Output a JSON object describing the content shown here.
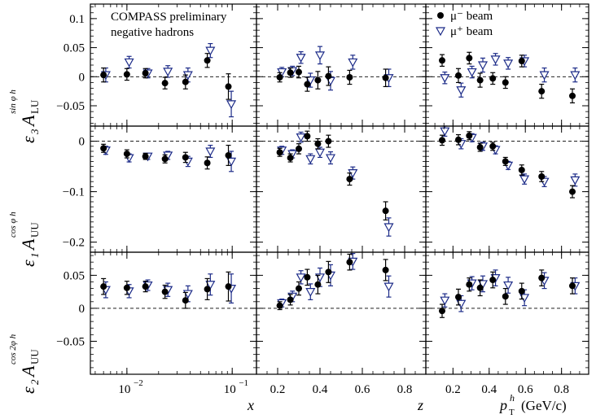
{
  "chart_data": {
    "type": "scatter",
    "collaboration_text": [
      "COMPASS preliminary",
      "negative hadrons"
    ],
    "series": [
      {
        "name": "μ⁻ beam",
        "marker": "filled-circle",
        "color": "#000000"
      },
      {
        "name": "μ⁺ beam",
        "marker": "open-triangle-down",
        "color": "#1c2b88"
      }
    ],
    "columns": [
      {
        "xlabel": "x",
        "xscale": "log",
        "xlim": [
          0.0045,
          0.17
        ],
        "xticks": [
          {
            "v": 0.01,
            "label": "10",
            "exp": "−2"
          },
          {
            "v": 0.1,
            "label": "10",
            "exp": "−1"
          }
        ]
      },
      {
        "xlabel": "z",
        "xscale": "linear",
        "xlim": [
          0.1,
          0.9
        ],
        "xticks": [
          {
            "v": 0.2,
            "label": "0.2"
          },
          {
            "v": 0.4,
            "label": "0.4"
          },
          {
            "v": 0.6,
            "label": "0.6"
          },
          {
            "v": 0.8,
            "label": "0.8"
          }
        ]
      },
      {
        "xlabel": "p",
        "xlabel_sub": "T",
        "xlabel_sup": "h",
        "xlabel_unit": "(GeV/c)",
        "xscale": "linear",
        "xlim": [
          0.05,
          0.95
        ],
        "xticks": [
          {
            "v": 0.2,
            "label": "0.2"
          },
          {
            "v": 0.4,
            "label": "0.4"
          },
          {
            "v": 0.6,
            "label": "0.6"
          },
          {
            "v": 0.8,
            "label": "0.8"
          }
        ]
      }
    ],
    "rows": [
      {
        "ylabel": "ε3 A_LU^{sin φh}",
        "ylim": [
          -0.085,
          0.125
        ],
        "yticks": [
          {
            "v": 0.1,
            "label": "0.1"
          },
          {
            "v": 0.05,
            "label": "0.05"
          },
          {
            "v": 0,
            "label": "0"
          },
          {
            "v": -0.05,
            "label": "−0.05"
          }
        ]
      },
      {
        "ylabel": "ε1 A_UU^{cos φh}",
        "ylim": [
          -0.22,
          0.03
        ],
        "yticks": [
          {
            "v": 0,
            "label": "0"
          },
          {
            "v": -0.1,
            "label": "−0.1"
          },
          {
            "v": -0.2,
            "label": "−0.2"
          }
        ]
      },
      {
        "ylabel": "ε2 A_UU^{cos 2φh}",
        "ylim": [
          -0.1,
          0.085
        ],
        "yticks": [
          {
            "v": 0.05,
            "label": "0.05"
          },
          {
            "v": 0,
            "label": "0"
          },
          {
            "v": -0.05,
            "label": "−0.05"
          }
        ]
      }
    ],
    "panels": [
      [
        {
          "mu_minus": [
            [
              0.006,
              0.003,
              0.012
            ],
            [
              0.01,
              0.004,
              0.01
            ],
            [
              0.015,
              0.006,
              0.008
            ],
            [
              0.023,
              -0.011,
              0.01
            ],
            [
              0.036,
              -0.009,
              0.012
            ],
            [
              0.058,
              0.028,
              0.012
            ],
            [
              0.092,
              -0.017,
              0.022
            ]
          ],
          "mu_plus": [
            [
              0.0063,
              0.003,
              0.012
            ],
            [
              0.0105,
              0.025,
              0.01
            ],
            [
              0.0158,
              0.006,
              0.008
            ],
            [
              0.0245,
              0.009,
              0.01
            ],
            [
              0.038,
              0.003,
              0.012
            ],
            [
              0.062,
              0.045,
              0.012
            ],
            [
              0.098,
              -0.047,
              0.022
            ]
          ]
        },
        {
          "mu_minus": [
            [
              0.21,
              -0.001,
              0.008
            ],
            [
              0.26,
              0.007,
              0.008
            ],
            [
              0.3,
              0.008,
              0.01
            ],
            [
              0.34,
              -0.013,
              0.012
            ],
            [
              0.39,
              -0.006,
              0.015
            ],
            [
              0.44,
              0.001,
              0.016
            ],
            [
              0.54,
              -0.001,
              0.012
            ],
            [
              0.71,
              -0.002,
              0.015
            ]
          ],
          "mu_plus": [
            [
              0.22,
              0.008,
              0.008
            ],
            [
              0.27,
              0.01,
              0.008
            ],
            [
              0.31,
              0.033,
              0.01
            ],
            [
              0.355,
              -0.006,
              0.012
            ],
            [
              0.4,
              0.037,
              0.015
            ],
            [
              0.45,
              -0.007,
              0.016
            ],
            [
              0.555,
              0.025,
              0.012
            ],
            [
              0.725,
              -0.002,
              0.015
            ]
          ]
        },
        {
          "mu_minus": [
            [
              0.14,
              0.028,
              0.01
            ],
            [
              0.23,
              0.002,
              0.012
            ],
            [
              0.29,
              0.032,
              0.01
            ],
            [
              0.35,
              -0.006,
              0.012
            ],
            [
              0.42,
              -0.003,
              0.01
            ],
            [
              0.49,
              -0.01,
              0.01
            ],
            [
              0.58,
              0.027,
              0.01
            ],
            [
              0.69,
              -0.025,
              0.012
            ],
            [
              0.86,
              -0.033,
              0.012
            ]
          ],
          "mu_plus": [
            [
              0.155,
              -0.002,
              0.01
            ],
            [
              0.245,
              -0.023,
              0.012
            ],
            [
              0.305,
              0.008,
              0.01
            ],
            [
              0.365,
              0.02,
              0.012
            ],
            [
              0.435,
              0.03,
              0.01
            ],
            [
              0.505,
              0.023,
              0.01
            ],
            [
              0.595,
              0.027,
              0.01
            ],
            [
              0.705,
              0.003,
              0.012
            ],
            [
              0.875,
              0.003,
              0.012
            ]
          ]
        }
      ],
      [
        {
          "mu_minus": [
            [
              0.006,
              -0.014,
              0.008
            ],
            [
              0.01,
              -0.025,
              0.008
            ],
            [
              0.015,
              -0.03,
              0.006
            ],
            [
              0.023,
              -0.035,
              0.008
            ],
            [
              0.036,
              -0.032,
              0.01
            ],
            [
              0.058,
              -0.043,
              0.012
            ],
            [
              0.092,
              -0.028,
              0.02
            ]
          ],
          "mu_plus": [
            [
              0.0063,
              -0.018,
              0.008
            ],
            [
              0.0105,
              -0.033,
              0.008
            ],
            [
              0.0158,
              -0.03,
              0.006
            ],
            [
              0.0245,
              -0.028,
              0.008
            ],
            [
              0.038,
              -0.04,
              0.01
            ],
            [
              0.062,
              -0.02,
              0.012
            ],
            [
              0.098,
              -0.04,
              0.02
            ]
          ]
        },
        {
          "mu_minus": [
            [
              0.21,
              -0.022,
              0.008
            ],
            [
              0.26,
              -0.033,
              0.008
            ],
            [
              0.3,
              -0.015,
              0.01
            ],
            [
              0.34,
              0.01,
              0.01
            ],
            [
              0.39,
              -0.005,
              0.01
            ],
            [
              0.44,
              0.0,
              0.012
            ],
            [
              0.54,
              -0.075,
              0.012
            ],
            [
              0.71,
              -0.138,
              0.018
            ]
          ],
          "mu_plus": [
            [
              0.22,
              -0.018,
              0.008
            ],
            [
              0.27,
              -0.025,
              0.008
            ],
            [
              0.31,
              0.008,
              0.01
            ],
            [
              0.355,
              -0.035,
              0.01
            ],
            [
              0.4,
              -0.022,
              0.01
            ],
            [
              0.45,
              -0.033,
              0.012
            ],
            [
              0.555,
              -0.063,
              0.012
            ],
            [
              0.725,
              -0.17,
              0.018
            ]
          ]
        },
        {
          "mu_minus": [
            [
              0.14,
              0.002,
              0.01
            ],
            [
              0.23,
              0.003,
              0.01
            ],
            [
              0.29,
              0.011,
              0.008
            ],
            [
              0.35,
              -0.012,
              0.008
            ],
            [
              0.42,
              -0.01,
              0.008
            ],
            [
              0.49,
              -0.04,
              0.008
            ],
            [
              0.58,
              -0.057,
              0.01
            ],
            [
              0.69,
              -0.07,
              0.01
            ],
            [
              0.86,
              -0.1,
              0.012
            ]
          ],
          "mu_plus": [
            [
              0.155,
              0.02,
              0.01
            ],
            [
              0.245,
              -0.005,
              0.01
            ],
            [
              0.305,
              0.007,
              0.008
            ],
            [
              0.365,
              -0.01,
              0.008
            ],
            [
              0.435,
              -0.017,
              0.008
            ],
            [
              0.505,
              -0.048,
              0.008
            ],
            [
              0.595,
              -0.075,
              0.01
            ],
            [
              0.705,
              -0.08,
              0.01
            ],
            [
              0.875,
              -0.077,
              0.012
            ]
          ]
        }
      ],
      [
        {
          "mu_minus": [
            [
              0.006,
              0.033,
              0.012
            ],
            [
              0.01,
              0.031,
              0.01
            ],
            [
              0.015,
              0.033,
              0.008
            ],
            [
              0.023,
              0.025,
              0.01
            ],
            [
              0.036,
              0.012,
              0.012
            ],
            [
              0.058,
              0.029,
              0.016
            ],
            [
              0.092,
              0.033,
              0.022
            ]
          ],
          "mu_plus": [
            [
              0.0063,
              0.028,
              0.012
            ],
            [
              0.0105,
              0.026,
              0.01
            ],
            [
              0.0158,
              0.035,
              0.008
            ],
            [
              0.0245,
              0.028,
              0.01
            ],
            [
              0.038,
              0.022,
              0.012
            ],
            [
              0.062,
              0.036,
              0.016
            ],
            [
              0.098,
              0.03,
              0.022
            ]
          ]
        },
        {
          "mu_minus": [
            [
              0.21,
              0.004,
              0.006
            ],
            [
              0.26,
              0.013,
              0.008
            ],
            [
              0.3,
              0.03,
              0.01
            ],
            [
              0.34,
              0.047,
              0.012
            ],
            [
              0.39,
              0.036,
              0.014
            ],
            [
              0.44,
              0.055,
              0.016
            ],
            [
              0.54,
              0.07,
              0.012
            ],
            [
              0.71,
              0.058,
              0.016
            ]
          ],
          "mu_plus": [
            [
              0.22,
              0.008,
              0.006
            ],
            [
              0.27,
              0.018,
              0.008
            ],
            [
              0.31,
              0.047,
              0.01
            ],
            [
              0.355,
              0.025,
              0.012
            ],
            [
              0.4,
              0.047,
              0.014
            ],
            [
              0.45,
              0.05,
              0.016
            ],
            [
              0.555,
              0.071,
              0.012
            ],
            [
              0.725,
              0.033,
              0.016
            ]
          ]
        },
        {
          "mu_minus": [
            [
              0.14,
              -0.004,
              0.01
            ],
            [
              0.23,
              0.017,
              0.012
            ],
            [
              0.29,
              0.036,
              0.01
            ],
            [
              0.35,
              0.031,
              0.012
            ],
            [
              0.42,
              0.043,
              0.012
            ],
            [
              0.49,
              0.018,
              0.012
            ],
            [
              0.58,
              0.026,
              0.012
            ],
            [
              0.69,
              0.046,
              0.012
            ],
            [
              0.86,
              0.034,
              0.012
            ]
          ],
          "mu_plus": [
            [
              0.155,
              0.012,
              0.01
            ],
            [
              0.245,
              0.007,
              0.012
            ],
            [
              0.305,
              0.038,
              0.01
            ],
            [
              0.365,
              0.037,
              0.012
            ],
            [
              0.435,
              0.046,
              0.012
            ],
            [
              0.505,
              0.035,
              0.012
            ],
            [
              0.595,
              0.016,
              0.012
            ],
            [
              0.705,
              0.042,
              0.012
            ],
            [
              0.875,
              0.034,
              0.012
            ]
          ]
        }
      ]
    ]
  }
}
